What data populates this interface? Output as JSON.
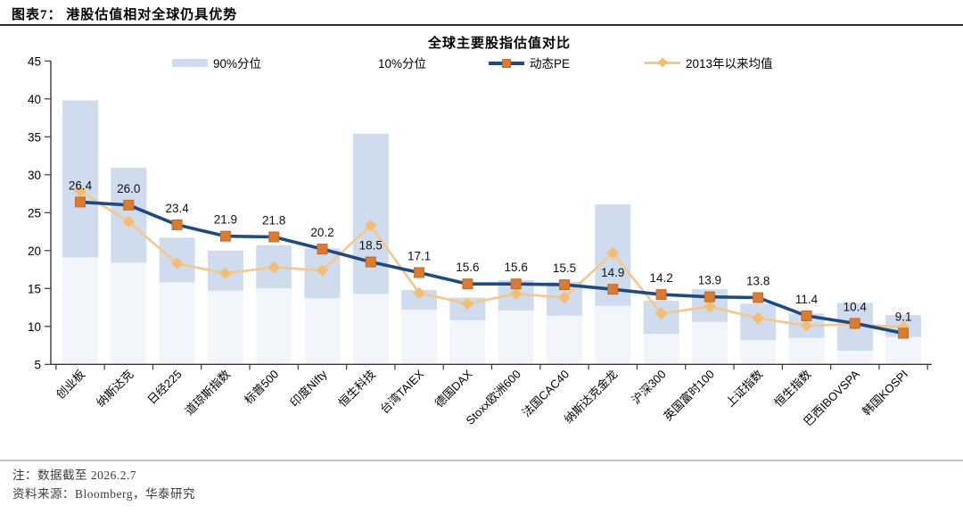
{
  "page": {
    "header_title": "图表7：  港股估值相对全球仍具优势",
    "note_1": "注：数据截至 2026.2.7",
    "note_2": "资料来源：Bloomberg，华泰研究"
  },
  "colors": {
    "band": "#cfdcee",
    "band_ghost_opacity": "0.28",
    "pe_line": "#1b4a86",
    "pe_marker": "#dc7b2f",
    "pe_marker_stroke": "#c46a22",
    "avg_line": "#f6c787",
    "avg_marker": "#f3bd74",
    "axis": "#3a3a3a",
    "text": "#000000",
    "value_label": "#111111"
  },
  "chart_data": {
    "type": "combo (floating range bars + two lines)",
    "title": "全球主要股指估值对比",
    "ylim": [
      5,
      45
    ],
    "ytick_step": 5,
    "grid": false,
    "legend_position": "top",
    "legend": [
      {
        "label": "90%分位",
        "swatch": "band"
      },
      {
        "label": "10%分位",
        "swatch": "white-band"
      },
      {
        "label": "动态PE",
        "swatch": "line-square"
      },
      {
        "label": "2013年以来均值",
        "swatch": "line-diamond"
      }
    ],
    "categories": [
      "创业板",
      "纳斯达克",
      "日经225",
      "道琼斯指数",
      "标普500",
      "印度Nifty",
      "恒生科技",
      "台湾TAIEX",
      "德国DAX",
      "Stoxx欧洲600",
      "法国CAC40",
      "纳斯达克金龙",
      "沪深300",
      "英国富时100",
      "上证指数",
      "恒生指数",
      "巴西IBOVSPA",
      "韩国KOSPI"
    ],
    "series": [
      {
        "name": "90%分位至10%分位区间",
        "type": "range_bar",
        "p90": [
          39.8,
          30.9,
          21.7,
          20.0,
          20.7,
          20.3,
          35.4,
          14.8,
          13.8,
          16.1,
          15.9,
          26.1,
          13.4,
          14.9,
          13.0,
          11.7,
          13.1,
          11.5
        ],
        "p10": [
          19.1,
          18.4,
          15.8,
          14.7,
          15.0,
          13.7,
          14.3,
          12.2,
          10.8,
          12.1,
          11.4,
          12.7,
          9.0,
          10.6,
          8.2,
          8.5,
          6.8,
          8.6
        ]
      },
      {
        "name": "动态PE",
        "type": "line",
        "values": [
          26.4,
          26.0,
          23.4,
          21.9,
          21.8,
          20.2,
          18.5,
          17.1,
          15.6,
          15.6,
          15.5,
          14.9,
          14.2,
          13.9,
          13.8,
          11.4,
          10.4,
          9.1
        ],
        "labels": [
          "26.4",
          "26.0",
          "23.4",
          "21.9",
          "21.8",
          "20.2",
          "18.5",
          "17.1",
          "15.6",
          "15.6",
          "15.5",
          "14.9",
          "14.2",
          "13.9",
          "13.8",
          "11.4",
          "10.4",
          "9.1"
        ]
      },
      {
        "name": "2013年以来均值",
        "type": "line",
        "values": [
          27.8,
          23.8,
          18.3,
          17.0,
          17.8,
          17.4,
          23.3,
          14.4,
          13.0,
          14.3,
          13.8,
          19.7,
          11.7,
          12.6,
          11.1,
          10.1,
          10.3,
          9.9
        ]
      }
    ]
  }
}
